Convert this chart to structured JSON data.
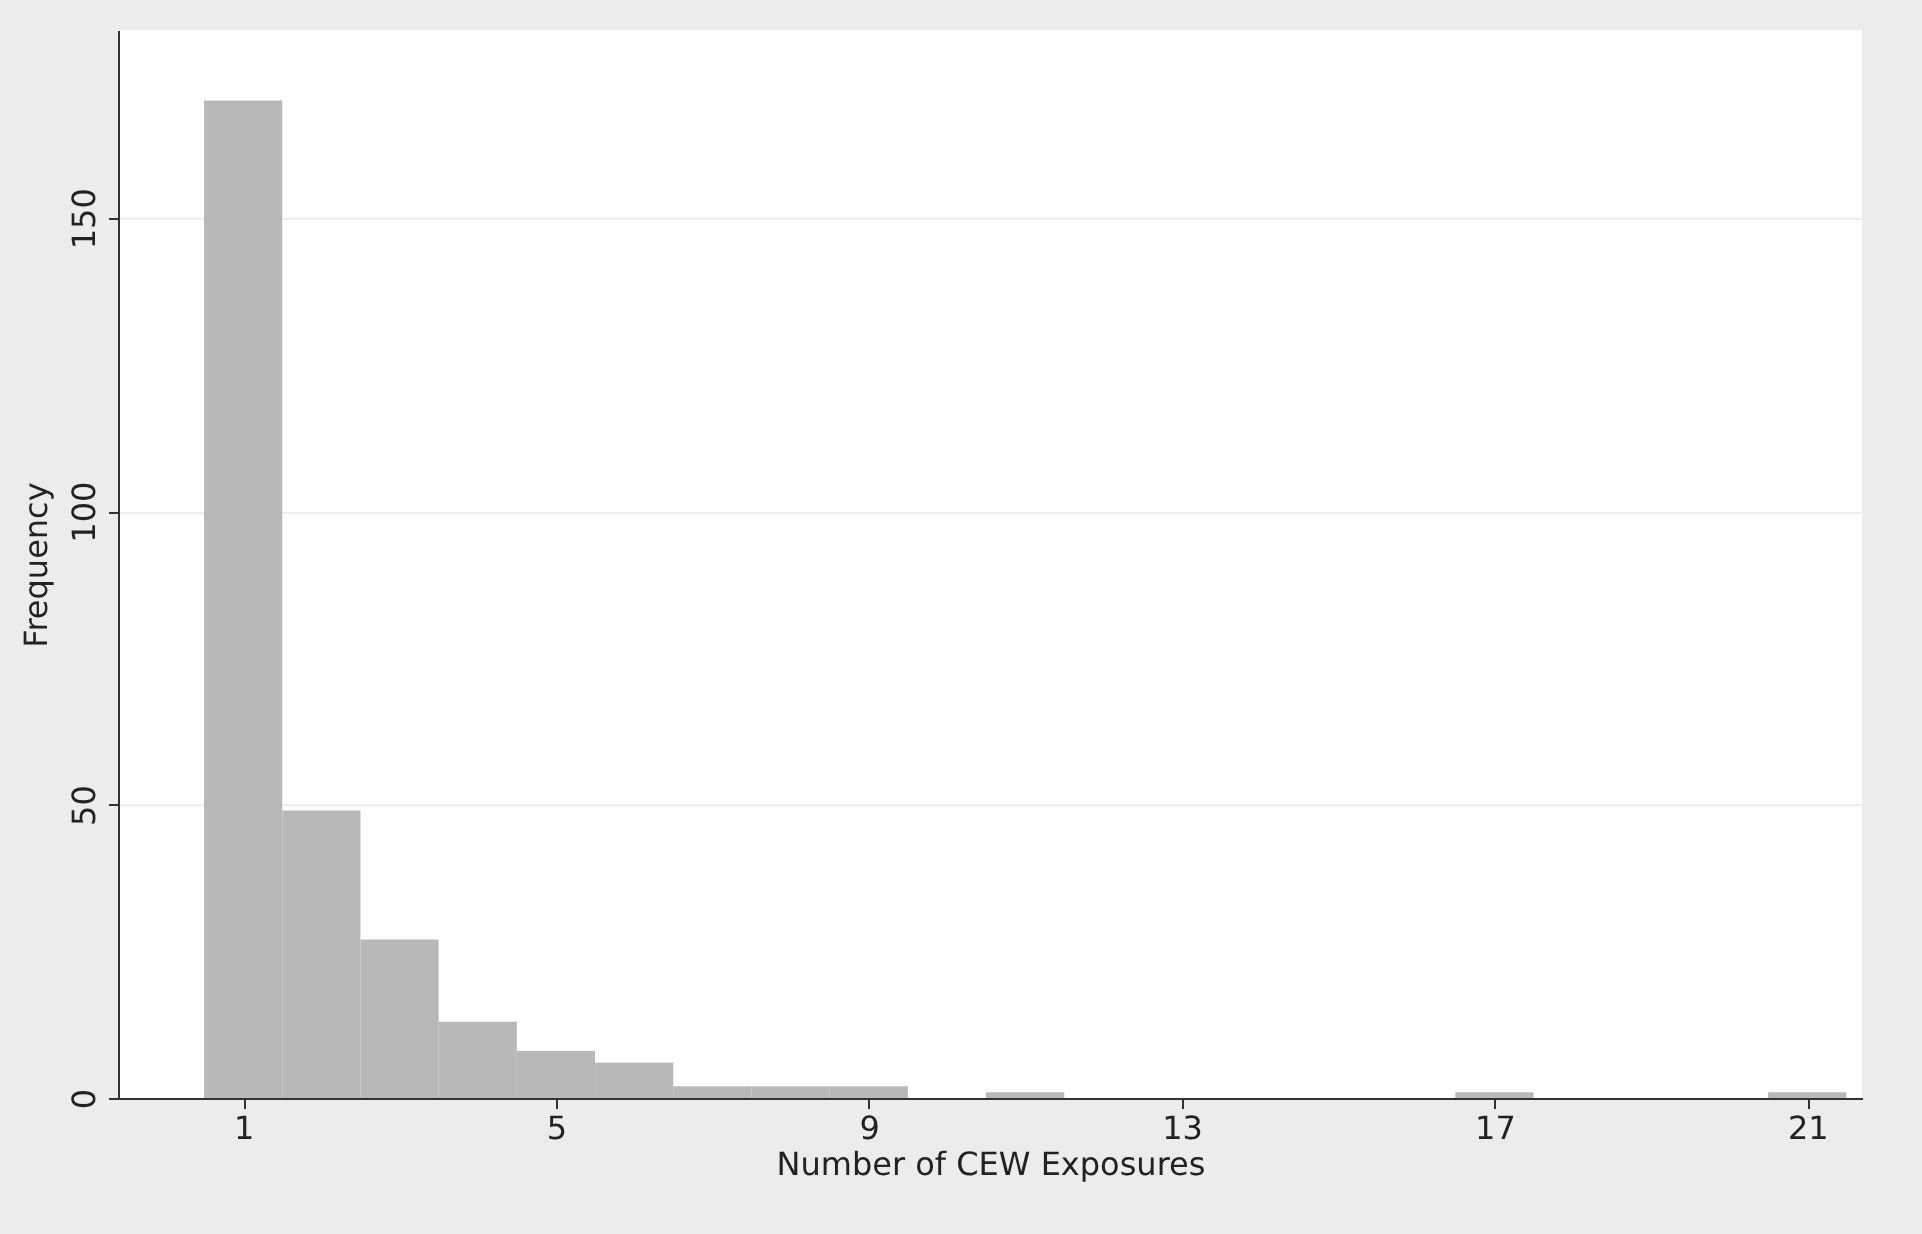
{
  "chart_data": {
    "type": "histogram",
    "xlabel": "Number of CEW Exposures",
    "ylabel": "Frequency",
    "bins": [
      0.5,
      1.5,
      2.5,
      3.5,
      4.5,
      5.5,
      6.5,
      7.5,
      8.5,
      9.5,
      10.5,
      11.5,
      12.5,
      13.5,
      14.5,
      15.5,
      16.5,
      17.5,
      18.5,
      19.5,
      20.5,
      21.5
    ],
    "values": [
      170,
      49,
      27,
      13,
      8,
      6,
      2,
      2,
      2,
      0,
      1,
      0,
      0,
      0,
      0,
      0,
      1,
      0,
      0,
      0,
      1
    ],
    "color": "#b8b8b8",
    "xlim": [
      -0.6,
      21.7
    ],
    "ylim": [
      0,
      182
    ],
    "xticks": [
      1,
      5,
      9,
      13,
      17,
      21
    ],
    "yticks": [
      0,
      50,
      100,
      150
    ],
    "grid": "y"
  }
}
